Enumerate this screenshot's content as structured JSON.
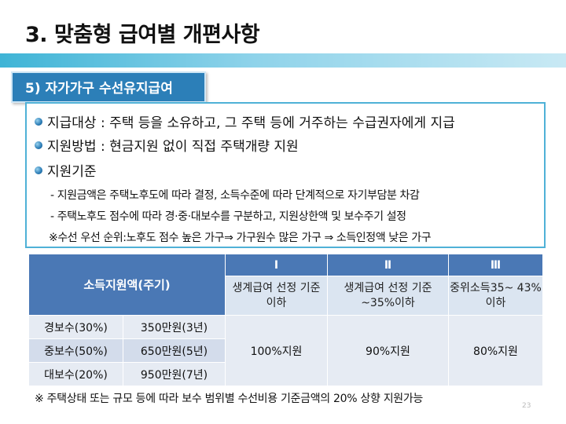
{
  "title": "3. 맞춤형 급여별 개편사항",
  "section_label": "5) 자가가구 수선유지급여",
  "bullets": [
    "지급대상 : 주택 등을 소유하고, 그 주택 등에 거주하는 수급권자에게 지급",
    "지원방법 : 현금지원 없이 직접 주택개량 지원",
    "지원기준"
  ],
  "sub_items": [
    "- 지원금액은 주택노후도에 따라 결정, 소득수준에 따라 단계적으로 자기부담분 차감",
    "- 주택노후도 점수에 따라 경·중·대보수를 구분하고, 지원상한액 및 보수주기 설정"
  ],
  "priority_note": "※수선 우선 순위:노후도 점수 높은 가구⇒ 가구원수 많은 가구 ⇒ 소득인정액 낮은 가구",
  "table": {
    "header_label": "소득지원액(주기)",
    "levels": [
      "Ⅰ",
      "Ⅱ",
      "Ⅲ"
    ],
    "criteria": [
      "생계급여 선정 기준 이하",
      "생계급여 선정 기준~35%이하",
      "중위소득35~ 43%이하"
    ],
    "rows": [
      {
        "type": "경보수(30%)",
        "amount": "350만원(3년)"
      },
      {
        "type": "중보수(50%)",
        "amount": "650만원(5년)"
      },
      {
        "type": "대보수(20%)",
        "amount": "950만원(7년)"
      }
    ],
    "support": [
      "100%지원",
      "90%지원",
      "80%지원"
    ]
  },
  "footnote": "※  주택상태 또는 규모 등에 따라 보수 범위별 수선비용 기준금액의 20% 상향 지원가능",
  "page_number": "23"
}
